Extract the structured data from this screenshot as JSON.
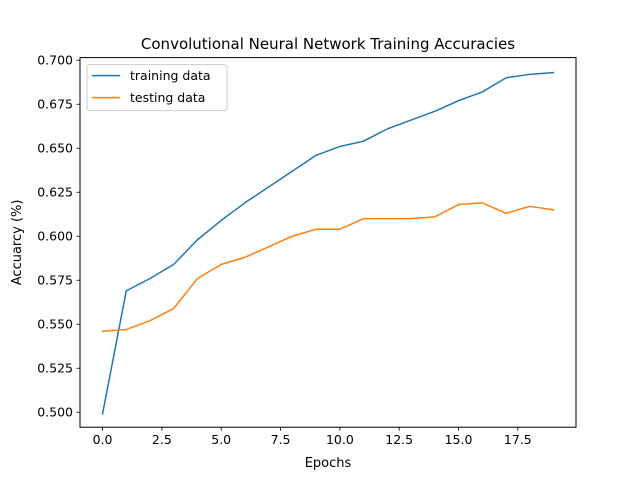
{
  "chart_data": {
    "type": "line",
    "title": "Convolutional Neural Network Training Accuracies",
    "xlabel": "Epochs",
    "ylabel": "Accuarcy (%)",
    "xlim": [
      -0.95,
      19.95
    ],
    "ylim": [
      0.4915,
      0.7015
    ],
    "x_ticks": [
      0.0,
      2.5,
      5.0,
      7.5,
      10.0,
      12.5,
      15.0,
      17.5
    ],
    "x_tick_labels": [
      "0.0",
      "2.5",
      "5.0",
      "7.5",
      "10.0",
      "12.5",
      "15.0",
      "17.5"
    ],
    "y_ticks": [
      0.5,
      0.525,
      0.55,
      0.575,
      0.6,
      0.625,
      0.65,
      0.675,
      0.7
    ],
    "y_tick_labels": [
      "0.500",
      "0.525",
      "0.550",
      "0.575",
      "0.600",
      "0.625",
      "0.650",
      "0.675",
      "0.700"
    ],
    "grid": false,
    "legend_position": "top-left",
    "x": [
      0,
      1,
      2,
      3,
      4,
      5,
      6,
      7,
      8,
      9,
      10,
      11,
      12,
      13,
      14,
      15,
      16,
      17,
      18,
      19
    ],
    "series": [
      {
        "name": "training data",
        "color": "#1f77b4",
        "values": [
          0.499,
          0.569,
          0.576,
          0.584,
          0.598,
          0.609,
          0.619,
          0.628,
          0.637,
          0.646,
          0.651,
          0.654,
          0.661,
          0.666,
          0.671,
          0.677,
          0.682,
          0.69,
          0.692,
          0.693
        ]
      },
      {
        "name": "testing data",
        "color": "#ff7f0e",
        "values": [
          0.546,
          0.547,
          0.552,
          0.559,
          0.576,
          0.584,
          0.588,
          0.594,
          0.6,
          0.604,
          0.604,
          0.61,
          0.61,
          0.61,
          0.611,
          0.618,
          0.619,
          0.613,
          0.617,
          0.615
        ]
      }
    ]
  }
}
